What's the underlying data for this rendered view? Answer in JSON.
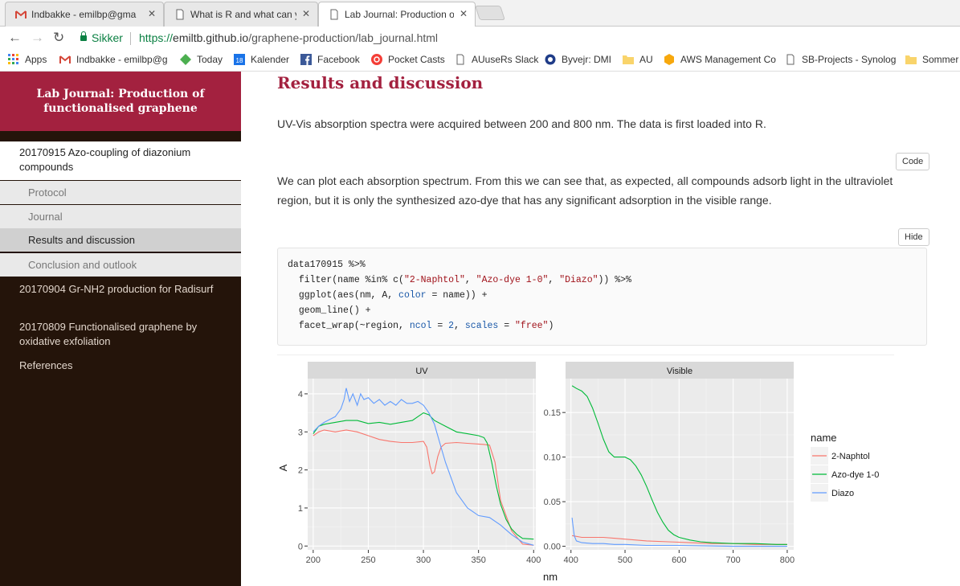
{
  "browser": {
    "tabs": [
      {
        "title": "Indbakke - emilbp@gma",
        "icon": "gmail-icon"
      },
      {
        "title": "What is R and what can y",
        "icon": "page-icon"
      },
      {
        "title": "Lab Journal: Production o",
        "icon": "page-icon"
      }
    ],
    "secure_label": "Sikker",
    "url_scheme": "https://",
    "url_host": "emiltb.github.io",
    "url_path": "/graphene-production/lab_journal.html",
    "bookmarks": [
      {
        "label": "Apps",
        "icon": "apps-grid-icon"
      },
      {
        "label": "Indbakke - emilbp@g",
        "icon": "gmail-icon"
      },
      {
        "label": "Today",
        "icon": "today-icon"
      },
      {
        "label": "Kalender",
        "icon": "calendar-icon"
      },
      {
        "label": "Facebook",
        "icon": "facebook-icon"
      },
      {
        "label": "Pocket Casts",
        "icon": "pocket-casts-icon"
      },
      {
        "label": "AUuseRs Slack",
        "icon": "page-icon"
      },
      {
        "label": "Byvejr: DMI",
        "icon": "dmi-icon"
      },
      {
        "label": "AU",
        "icon": "folder-icon"
      },
      {
        "label": "AWS Management Co",
        "icon": "aws-icon"
      },
      {
        "label": "SB-Projects - Synolog",
        "icon": "page-icon"
      },
      {
        "label": "Sommer",
        "icon": "folder-icon"
      }
    ],
    "calendar_day": "18"
  },
  "sidebar": {
    "title": "Lab Journal: Production of functionalised graphene",
    "current_section": "20170915 Azo-coupling of diazonium compounds",
    "subsections": [
      "Protocol",
      "Journal",
      "Results and discussion",
      "Conclusion and outlook"
    ],
    "active_subsection": "Results and discussion",
    "sections": [
      "20170904 Gr-NH2 production for Radisurf",
      "20170809 Functionalised graphene by oxidative exfoliation",
      "References"
    ]
  },
  "main": {
    "heading": "Results and discussion",
    "para1": "UV-Vis absorption spectra were acquired between 200 and 800 nm. The data is first loaded into R.",
    "code_button": "Code",
    "para2": "We can plot each absorption spectrum. From this we can see that, as expected, all compounds adsorb light in the ultraviolet region, but it is only the synthesized azo-dye that has any significant adsorption in the visible range.",
    "hide_button": "Hide",
    "code": {
      "line1": "data170915 %>%",
      "line2_a": "filter(name %in% c(",
      "line2_s1": "\"2-Naphtol\"",
      "line2_c1": ", ",
      "line2_s2": "\"Azo-dye 1-0\"",
      "line2_c2": ", ",
      "line2_s3": "\"Diazo\"",
      "line2_b": ")) %>%",
      "line3_a": "ggplot(aes(nm, A, ",
      "line3_k": "color",
      "line3_b": " = name)) +",
      "line4": "geom_line() +",
      "line5_a": "facet_wrap(~region, ",
      "line5_k1": "ncol",
      "line5_b": " = ",
      "line5_n": "2",
      "line5_c": ", ",
      "line5_k2": "scales",
      "line5_d": " = ",
      "line5_s": "\"free\"",
      "line5_e": ")"
    }
  },
  "colors": {
    "accent": "#a3213f",
    "sidebar_bg": "#24140a",
    "naphtol": "#f8766d",
    "azo": "#00ba38",
    "diazo": "#619cff"
  },
  "chart_data": {
    "type": "line",
    "facets": [
      "UV",
      "Visible"
    ],
    "xlabel": "nm",
    "ylabel": "A",
    "legend_title": "name",
    "legend_position": "right",
    "grid": true,
    "panels": [
      {
        "strip": "UV",
        "xlim": [
          195,
          402
        ],
        "ylim": [
          -0.1,
          4.4
        ],
        "x_ticks": [
          200,
          250,
          300,
          350,
          400
        ],
        "y_ticks": [
          0,
          1,
          2,
          3,
          4
        ],
        "series": [
          {
            "name": "2-Naphtol",
            "x": [
              200,
              205,
              210,
              220,
              230,
              240,
              250,
              260,
              270,
              280,
              290,
              300,
              303,
              306,
              308,
              310,
              313,
              316,
              320,
              330,
              340,
              350,
              355,
              360,
              365,
              370,
              380,
              390,
              400
            ],
            "y": [
              2.9,
              3.0,
              3.05,
              3.0,
              3.05,
              3.0,
              2.9,
              2.8,
              2.75,
              2.72,
              2.72,
              2.75,
              2.6,
              2.1,
              1.9,
              1.95,
              2.35,
              2.6,
              2.7,
              2.72,
              2.7,
              2.68,
              2.67,
              2.65,
              2.2,
              1.2,
              0.4,
              0.05,
              0.02
            ]
          },
          {
            "name": "Azo-dye 1-0",
            "x": [
              200,
              205,
              210,
              220,
              230,
              240,
              250,
              260,
              270,
              280,
              290,
              295,
              300,
              305,
              310,
              320,
              330,
              340,
              350,
              355,
              358,
              362,
              366,
              370,
              375,
              380,
              385,
              390,
              400
            ],
            "y": [
              2.95,
              3.15,
              3.2,
              3.25,
              3.3,
              3.3,
              3.22,
              3.25,
              3.2,
              3.25,
              3.3,
              3.4,
              3.5,
              3.45,
              3.3,
              3.15,
              3.0,
              2.95,
              2.9,
              2.85,
              2.7,
              2.2,
              1.6,
              1.1,
              0.7,
              0.45,
              0.3,
              0.2,
              0.18
            ]
          },
          {
            "name": "Diazo",
            "x": [
              200,
              205,
              210,
              220,
              225,
              228,
              230,
              233,
              236,
              240,
              243,
              246,
              250,
              255,
              260,
              265,
              270,
              275,
              280,
              285,
              290,
              295,
              300,
              305,
              310,
              315,
              320,
              330,
              340,
              350,
              360,
              370,
              380,
              390,
              400
            ],
            "y": [
              3.0,
              3.15,
              3.25,
              3.4,
              3.6,
              3.85,
              4.15,
              3.8,
              4.0,
              3.7,
              4.0,
              3.85,
              3.9,
              3.75,
              3.85,
              3.7,
              3.8,
              3.7,
              3.85,
              3.75,
              3.75,
              3.8,
              3.7,
              3.5,
              3.2,
              2.7,
              2.2,
              1.4,
              1.0,
              0.8,
              0.75,
              0.55,
              0.3,
              0.1,
              0.02
            ]
          }
        ]
      },
      {
        "strip": "Visible",
        "xlim": [
          390,
          812
        ],
        "ylim": [
          -0.004,
          0.188
        ],
        "x_ticks": [
          400,
          500,
          600,
          700,
          800
        ],
        "y_ticks": [
          0.0,
          0.05,
          0.1,
          0.15
        ],
        "y_tick_labels": [
          "0.00",
          "0.05",
          "0.10",
          "0.15"
        ],
        "series": [
          {
            "name": "2-Naphtol",
            "x": [
              402,
              420,
              440,
              460,
              480,
              500,
              540,
              580,
              620,
              660,
              700,
              740,
              780,
              800
            ],
            "y": [
              0.012,
              0.01,
              0.01,
              0.01,
              0.009,
              0.008,
              0.006,
              0.005,
              0.004,
              0.003,
              0.003,
              0.002,
              0.002,
              0.002
            ]
          },
          {
            "name": "Azo-dye 1-0",
            "x": [
              402,
              410,
              420,
              430,
              440,
              450,
              460,
              470,
              480,
              490,
              500,
              510,
              520,
              530,
              540,
              550,
              560,
              570,
              580,
              590,
              600,
              620,
              640,
              660,
              700,
              740,
              780,
              800
            ],
            "y": [
              0.18,
              0.177,
              0.174,
              0.168,
              0.155,
              0.138,
              0.12,
              0.106,
              0.1,
              0.1,
              0.1,
              0.097,
              0.09,
              0.08,
              0.067,
              0.052,
              0.038,
              0.027,
              0.018,
              0.013,
              0.01,
              0.007,
              0.005,
              0.004,
              0.003,
              0.003,
              0.002,
              0.002
            ]
          },
          {
            "name": "Diazo",
            "x": [
              402,
              404,
              406,
              410,
              420,
              440,
              460,
              480,
              500,
              540,
              600,
              700,
              800
            ],
            "y": [
              0.032,
              0.022,
              0.012,
              0.006,
              0.004,
              0.003,
              0.003,
              0.002,
              0.002,
              0.001,
              0.001,
              0.0,
              0.0
            ]
          }
        ]
      }
    ]
  }
}
